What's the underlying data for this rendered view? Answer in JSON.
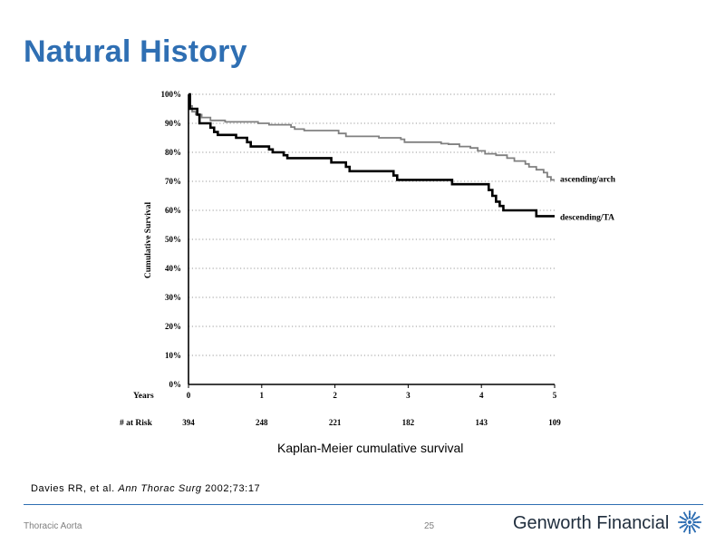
{
  "slide": {
    "title": "Natural History",
    "caption": "Kaplan-Meier cumulative survival",
    "citation": {
      "authors": "Davies RR, et al.",
      "journal": "Ann Thorac Surg",
      "ref": "2002;73:17"
    },
    "footer_left": "Thoracic Aorta",
    "page_number": "25",
    "brand": {
      "name_bold": "Genworth",
      "name_light": "Financial",
      "logo_icon": "starburst-logo-icon",
      "color": "#1f2d3d"
    },
    "accent_color": "#2f6fb3"
  },
  "chart_data": {
    "type": "line",
    "ylabel": "Cumulative Survival",
    "x_axis_label": "Years",
    "ylim": [
      0,
      100
    ],
    "xlim": [
      0,
      5
    ],
    "y_ticks": [
      "0%",
      "10%",
      "20%",
      "30%",
      "40%",
      "50%",
      "60%",
      "70%",
      "80%",
      "90%",
      "100%"
    ],
    "x_ticks": [
      "0",
      "1",
      "2",
      "3",
      "4",
      "5"
    ],
    "grid": "dotted horizontal",
    "at_risk": {
      "label": "# at Risk",
      "values": [
        "394",
        "248",
        "221",
        "182",
        "143",
        "109"
      ]
    },
    "series": [
      {
        "name": "ascending/arch",
        "color": "#808080",
        "steps": [
          [
            0,
            100
          ],
          [
            0.02,
            96
          ],
          [
            0.05,
            94
          ],
          [
            0.1,
            93
          ],
          [
            0.18,
            92
          ],
          [
            0.3,
            91
          ],
          [
            0.5,
            90.5
          ],
          [
            0.95,
            90
          ],
          [
            1.1,
            89.5
          ],
          [
            1.4,
            88.7
          ],
          [
            1.45,
            88
          ],
          [
            1.58,
            87.5
          ],
          [
            2.05,
            86.5
          ],
          [
            2.15,
            85.5
          ],
          [
            2.6,
            85
          ],
          [
            2.9,
            84.5
          ],
          [
            2.95,
            83.5
          ],
          [
            3.45,
            83
          ],
          [
            3.55,
            82.8
          ],
          [
            3.7,
            82
          ],
          [
            3.85,
            81.5
          ],
          [
            3.95,
            80.5
          ],
          [
            4.05,
            79.5
          ],
          [
            4.2,
            79
          ],
          [
            4.35,
            78
          ],
          [
            4.45,
            77
          ],
          [
            4.6,
            76
          ],
          [
            4.65,
            75
          ],
          [
            4.75,
            74
          ],
          [
            4.85,
            73
          ],
          [
            4.9,
            71.5
          ],
          [
            4.95,
            70.5
          ],
          [
            5,
            70.5
          ]
        ]
      },
      {
        "name": "descending/TA",
        "color": "#000000",
        "steps": [
          [
            0,
            100
          ],
          [
            0.02,
            95
          ],
          [
            0.12,
            93
          ],
          [
            0.15,
            90
          ],
          [
            0.3,
            88.5
          ],
          [
            0.35,
            87
          ],
          [
            0.4,
            86
          ],
          [
            0.65,
            85
          ],
          [
            0.8,
            83.5
          ],
          [
            0.85,
            82
          ],
          [
            1.1,
            81
          ],
          [
            1.15,
            80
          ],
          [
            1.3,
            79
          ],
          [
            1.35,
            78
          ],
          [
            1.95,
            76.5
          ],
          [
            2.15,
            75
          ],
          [
            2.2,
            73.5
          ],
          [
            2.8,
            72
          ],
          [
            2.85,
            70.5
          ],
          [
            3.6,
            69
          ],
          [
            4.1,
            67
          ],
          [
            4.15,
            65
          ],
          [
            4.2,
            63
          ],
          [
            4.25,
            61.5
          ],
          [
            4.3,
            60
          ],
          [
            4.75,
            58
          ],
          [
            5,
            58
          ]
        ]
      }
    ]
  }
}
